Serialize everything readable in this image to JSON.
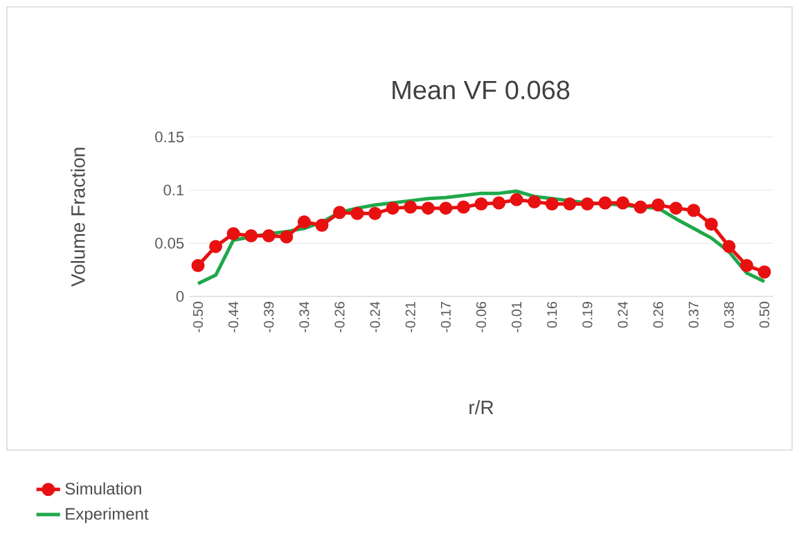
{
  "chart_data": {
    "type": "line",
    "title": "Mean VF 0.068",
    "xlabel": "r/R",
    "ylabel": "Volume Fraction",
    "categories": [
      "-0.50",
      null,
      "-0.44",
      null,
      "-0.39",
      null,
      "-0.34",
      null,
      "-0.26",
      null,
      "-0.24",
      null,
      "-0.21",
      null,
      "-0.17",
      null,
      "-0.06",
      null,
      "-0.01",
      null,
      "0.16",
      null,
      "0.19",
      null,
      "0.24",
      null,
      "0.26",
      null,
      "0.37",
      null,
      "0.38",
      null,
      "0.50"
    ],
    "series": [
      {
        "name": "Simulation",
        "color": "#e81010",
        "marker": "circle",
        "values": [
          0.029,
          0.047,
          0.059,
          0.057,
          0.057,
          0.056,
          0.07,
          0.067,
          0.079,
          0.078,
          0.078,
          0.083,
          0.084,
          0.083,
          0.083,
          0.084,
          0.087,
          0.088,
          0.091,
          0.089,
          0.087,
          0.087,
          0.087,
          0.088,
          0.088,
          0.084,
          0.086,
          0.083,
          0.081,
          0.068,
          0.047,
          0.029,
          0.023
        ]
      },
      {
        "name": "Experiment",
        "color": "#1fa84a",
        "marker": "none",
        "values": [
          0.012,
          0.02,
          0.053,
          0.056,
          0.059,
          0.061,
          0.064,
          0.07,
          0.079,
          0.083,
          0.086,
          0.088,
          0.09,
          0.092,
          0.093,
          0.095,
          0.097,
          0.097,
          0.099,
          0.094,
          0.092,
          0.09,
          0.088,
          0.087,
          0.086,
          0.084,
          0.083,
          0.073,
          0.064,
          0.055,
          0.042,
          0.022,
          0.014
        ]
      }
    ],
    "ylim": [
      0,
      0.15
    ],
    "yticks": [
      0,
      0.05,
      0.1,
      0.15
    ],
    "grid": "y",
    "legend": "bottom left"
  }
}
